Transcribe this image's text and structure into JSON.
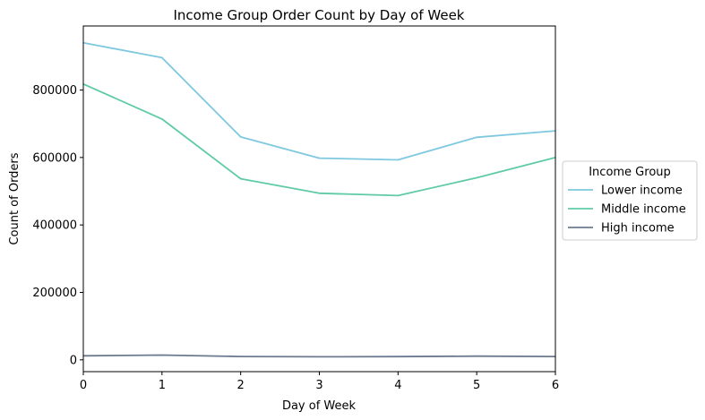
{
  "chart_data": {
    "type": "line",
    "title": "Income Group Order Count by Day of Week",
    "xlabel": "Day of Week",
    "ylabel": "Count of Orders",
    "x": [
      0,
      1,
      2,
      3,
      4,
      5,
      6
    ],
    "xlim": [
      0,
      6
    ],
    "ylim": [
      -35000,
      990000
    ],
    "xticks": [
      0,
      1,
      2,
      3,
      4,
      5,
      6
    ],
    "yticks": [
      0,
      200000,
      400000,
      600000,
      800000
    ],
    "grid": false,
    "legend": {
      "title": "Income Group",
      "placement": "outside-right"
    },
    "series": [
      {
        "name": "Lower income",
        "color": "#7ec8e0",
        "values": [
          940000,
          896000,
          661000,
          598000,
          593000,
          660000,
          679000
        ]
      },
      {
        "name": "Middle income",
        "color": "#5fcba5",
        "values": [
          818000,
          714000,
          537000,
          494000,
          487000,
          540000,
          600000
        ]
      },
      {
        "name": "High income",
        "color": "#6b7a8f",
        "values": [
          12000,
          14000,
          10000,
          9000,
          9500,
          11000,
          10000
        ]
      }
    ]
  }
}
